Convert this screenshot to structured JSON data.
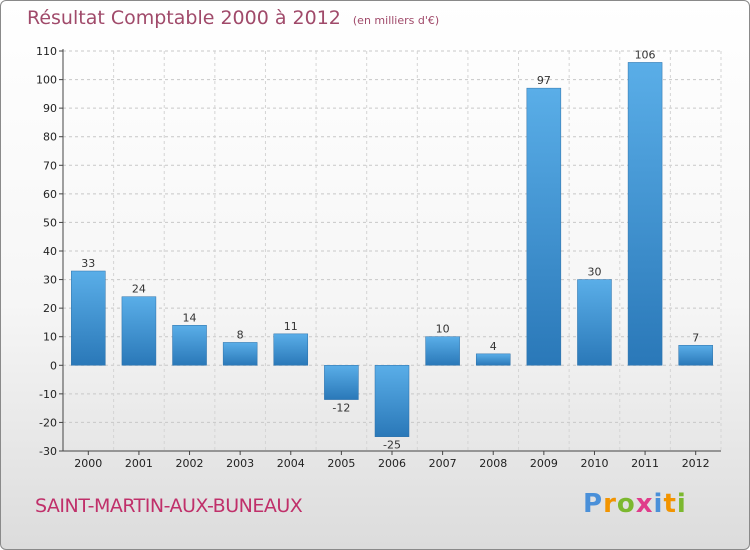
{
  "chart_data": {
    "type": "bar",
    "title": "Résultat Comptable 2000 à 2012",
    "unit_label": "(en milliers d'€)",
    "categories": [
      "2000",
      "2001",
      "2002",
      "2003",
      "2004",
      "2005",
      "2006",
      "2007",
      "2008",
      "2009",
      "2010",
      "2011",
      "2012"
    ],
    "values": [
      33,
      24,
      14,
      8,
      11,
      -12,
      -25,
      10,
      4,
      97,
      30,
      106,
      7
    ],
    "ylim": [
      -30,
      110
    ],
    "yticks": [
      -30,
      -20,
      -10,
      0,
      10,
      20,
      30,
      40,
      50,
      60,
      70,
      80,
      90,
      100,
      110
    ],
    "grid": "horizontal-dashed",
    "xlabel": "",
    "ylabel": ""
  },
  "commune": "SAINT-MARTIN-AUX-BUNEAUX",
  "logo": {
    "letters": [
      "P",
      "r",
      "o",
      "x",
      "i",
      "t",
      "i"
    ],
    "colors": [
      "#4a90d9",
      "#f29400",
      "#7cb82f",
      "#e03c8a",
      "#4a90d9",
      "#f29400",
      "#7cb82f"
    ]
  },
  "colors": {
    "bar_light": "#5aaee8",
    "bar_dark": "#2a78b8",
    "title": "#a04a6a",
    "commune": "#c0306a"
  }
}
